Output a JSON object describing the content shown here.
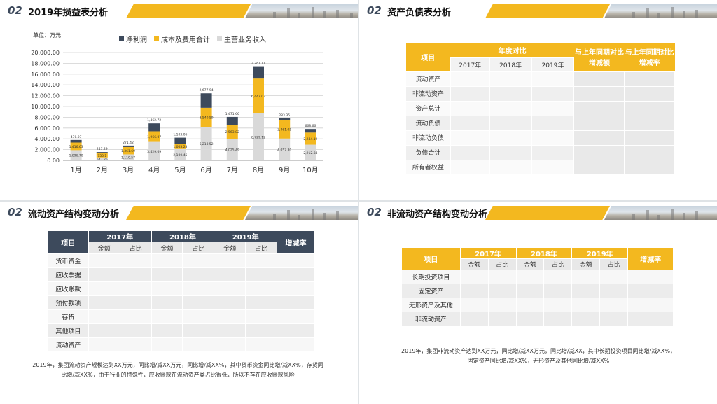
{
  "colors": {
    "accent_yellow": "#f3b81f",
    "dark": "#3d4a5c",
    "gray_bar": "#d9d9d9"
  },
  "panel1": {
    "num": "02",
    "title": "2019年损益表分析",
    "unit": "单位：万元",
    "legend": [
      "净利润",
      "成本及费用合计",
      "主营业务收入"
    ]
  },
  "chart_data": {
    "type": "bar",
    "stacked": true,
    "categories": [
      "1月",
      "2月",
      "3月",
      "4月",
      "5月",
      "6月",
      "7月",
      "8月",
      "9月",
      "10月"
    ],
    "ylim": [
      0,
      20000
    ],
    "yticks": [
      "0.00",
      "2,000.00",
      "4,000.00",
      "6,000.00",
      "8,000.00",
      "10,000.00",
      "12,000.00",
      "14,000.00",
      "16,000.00",
      "18,000.00",
      "20,000.00"
    ],
    "series": [
      {
        "name": "主营业务收入",
        "color": "#d9d9d9",
        "values": [
          1896.7,
          547.26,
          1110.57,
          3429.09,
          2100.45,
          6218.52,
          4025.49,
          8729.12,
          4057.3,
          2912.84
        ],
        "labels": [
          "1,896.70",
          "547.26",
          "1,110.57",
          "3,429.09",
          "2,100.45",
          "6,218.52",
          "4,025.49",
          "8,729.12",
          "4,057.30",
          "2,912.84"
        ]
      },
      {
        "name": "成本及费用合计",
        "color": "#f3b81f",
        "values": [
          1416.63,
          750.1,
          1361.69,
          1966.07,
          1003.23,
          3540.59,
          2563.82,
          6447.03,
          3461.05,
          2244.19
        ],
        "labels": [
          "1,416.63",
          "750.1",
          "1,361.69",
          "1,966.07",
          "1,003.23",
          "3,540.59",
          "2,563.82",
          "6,447.03",
          "3,461.05",
          "2,244.19"
        ]
      },
      {
        "name": "净利润",
        "color": "#3d4a5c",
        "values": [
          470.07,
          247.29,
          271.42,
          1462.72,
          1103.06,
          2677.94,
          1471.66,
          2281.11,
          283.35,
          668.66
        ],
        "labels": [
          "470.07",
          "247.29",
          "271.42",
          "1,462.72",
          "1,103.06",
          "2,677.94",
          "1,471.66",
          "2,281.11",
          "283.35",
          "668.66"
        ]
      }
    ]
  },
  "panel2": {
    "num": "02",
    "title": "资产负债表分析",
    "col_item": "项目",
    "col_year": "年度对比",
    "years": [
      "2017年",
      "2018年",
      "2019年"
    ],
    "col_yoy1": "与上年同期对比增减额",
    "col_yoy2": "与上年同期对比增减率",
    "rows": [
      "流动资产",
      "非流动资产",
      "资产总计",
      "流动负债",
      "非流动负债",
      "负债合计",
      "所有者权益"
    ]
  },
  "panel3": {
    "num": "02",
    "title": "流动资产结构变动分析",
    "col_item": "项目",
    "years": [
      "2017年",
      "2018年",
      "2019年"
    ],
    "sub": [
      "金额",
      "占比"
    ],
    "col_rate": "增减率",
    "rows": [
      "货币资金",
      "应收票据",
      "应收账款",
      "预付款项",
      "存货",
      "其他项目",
      "流动资产"
    ],
    "note": "2019年，集团流动资产规模达到XX万元，同比增/减XX万元，同比增/减XX%，其中货币资金同比增/减XX%，存货同比增/减XX%，由于行业的特殊性，应收账款在流动资产类占比很低，所以不存在应收账款风险"
  },
  "panel4": {
    "num": "02",
    "title": "非流动资产结构变动分析",
    "col_item": "项目",
    "years": [
      "2017年",
      "2018年",
      "2019年"
    ],
    "sub": [
      "金额",
      "占比"
    ],
    "col_rate": "增减率",
    "rows": [
      "长期投资项目",
      "固定资产",
      "无形资产及其他",
      "非流动资产"
    ],
    "note": "2019年，集团非流动资产达到XX万元，同比增/减XX万元，同比增/减XX，其中长期投资项目同比增/减XX%，固定资产同比增/减XX%，无形资产及其他同比增/减XX%"
  }
}
